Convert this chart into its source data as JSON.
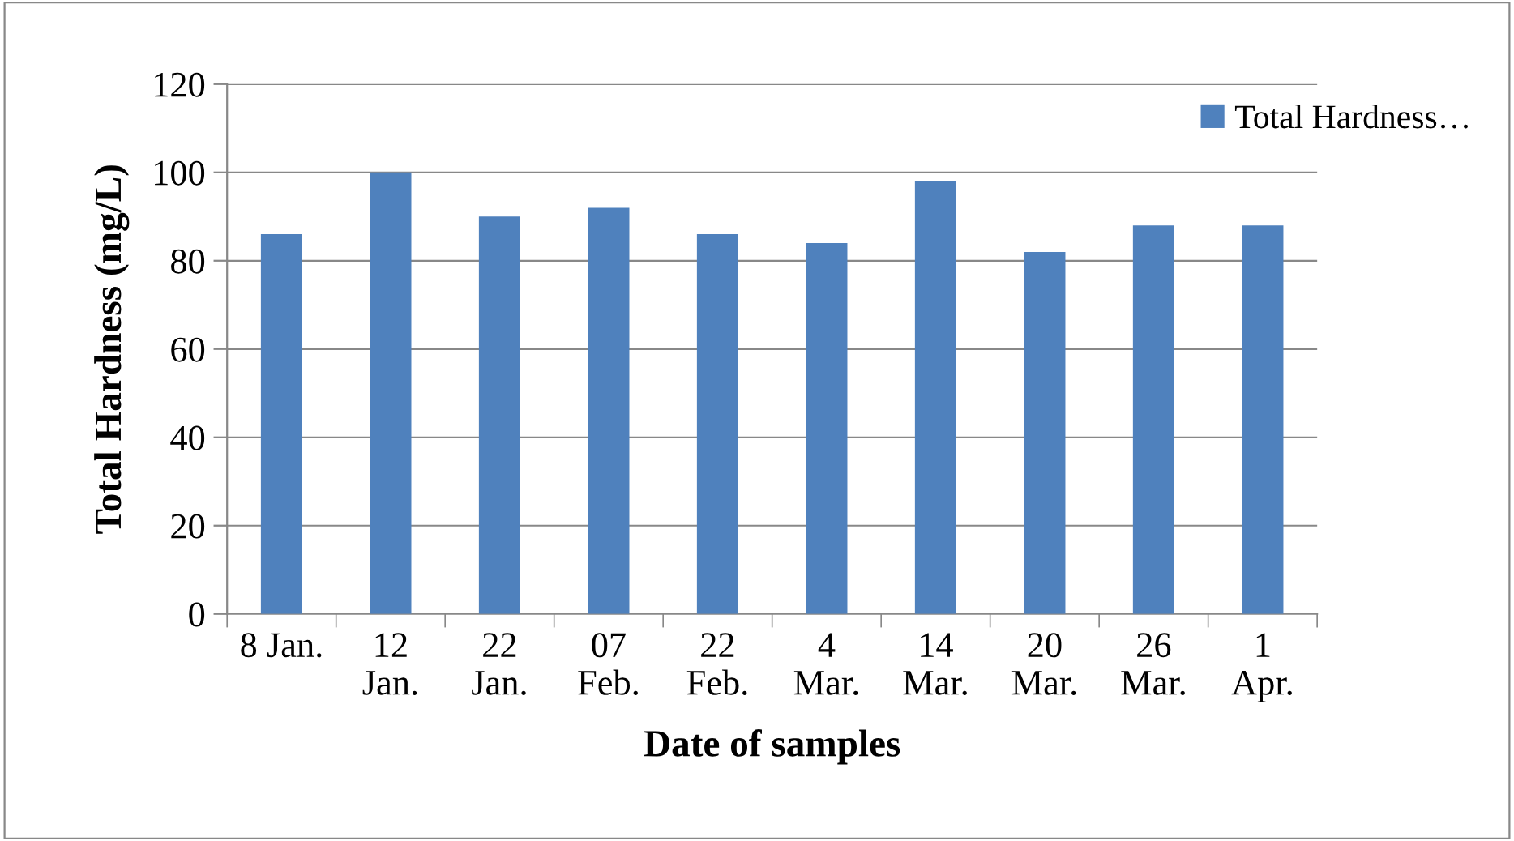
{
  "chart_data": {
    "type": "bar",
    "xlabel": "Date of samples",
    "ylabel": "Total Hardness (mg/L)",
    "categories": [
      "8 Jan.",
      "12\nJan.",
      "22\nJan.",
      "07\nFeb.",
      "22\nFeb.",
      "4\nMar.",
      "14\nMar.",
      "20\nMar.",
      "26\nMar.",
      "1\nApr."
    ],
    "series": [
      {
        "name": "Total Hardness…",
        "color": "#4f81bd",
        "values": [
          86,
          100,
          90,
          92,
          86,
          84,
          98,
          82,
          88,
          88
        ]
      }
    ],
    "ylim": [
      0,
      120
    ],
    "yticks": [
      0,
      20,
      40,
      60,
      80,
      100,
      120
    ],
    "grid": "y",
    "legend": "top right"
  }
}
